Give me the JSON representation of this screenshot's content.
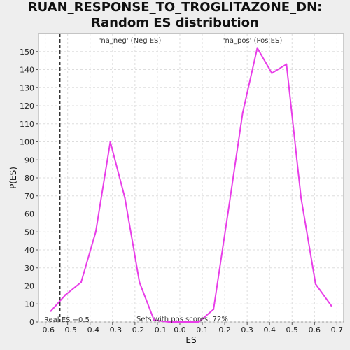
{
  "chart_data": {
    "type": "line",
    "title": "RUAN_RESPONSE_TO_TROGLITAZONE_DN: Random ES distribution",
    "xlabel": "ES",
    "ylabel": "P(ES)",
    "xlim": [
      -0.63,
      0.73
    ],
    "ylim": [
      0,
      160
    ],
    "xticks": [
      -0.6,
      -0.5,
      -0.4,
      -0.3,
      -0.2,
      -0.1,
      0.0,
      0.1,
      0.2,
      0.3,
      0.4,
      0.5,
      0.6,
      0.7
    ],
    "yticks": [
      0,
      10,
      20,
      30,
      40,
      50,
      60,
      70,
      80,
      90,
      100,
      110,
      120,
      130,
      140,
      150
    ],
    "xtick_labels": [
      "−0.6",
      "−0.5",
      "−0.4",
      "−0.3",
      "−0.2",
      "−0.1",
      "0.0",
      "0.1",
      "0.2",
      "0.3",
      "0.4",
      "0.5",
      "0.6",
      "0.7"
    ],
    "ytick_labels": [
      "0",
      "10",
      "20",
      "30",
      "40",
      "50",
      "60",
      "70",
      "80",
      "90",
      "100",
      "110",
      "120",
      "130",
      "140",
      "150"
    ],
    "grid": true,
    "line_color": "#e83ee8",
    "series": [
      {
        "x": [
          -0.575,
          -0.51,
          -0.44,
          -0.375,
          -0.31,
          -0.245,
          -0.18,
          -0.115,
          -0.05,
          0.02,
          0.085,
          0.15,
          0.215,
          0.28,
          0.345,
          0.41,
          0.475,
          0.54,
          0.605,
          0.675
        ],
        "y": [
          6,
          15,
          22,
          50,
          100,
          69,
          22,
          1,
          0,
          0,
          0,
          7,
          61,
          116,
          152,
          138,
          143,
          69,
          21,
          9
        ]
      }
    ],
    "marker_line": {
      "x": -0.535,
      "color": "#333333"
    },
    "annotations": {
      "neg_label": "'na_neg' (Neg ES)",
      "neg_color": "#4040d0",
      "pos_label": "'na_pos' (Pos ES)",
      "pos_color": "#e04040",
      "real_es": "Real ES −0.5",
      "pos_scores": "Sets with pos scores: 72%"
    }
  }
}
